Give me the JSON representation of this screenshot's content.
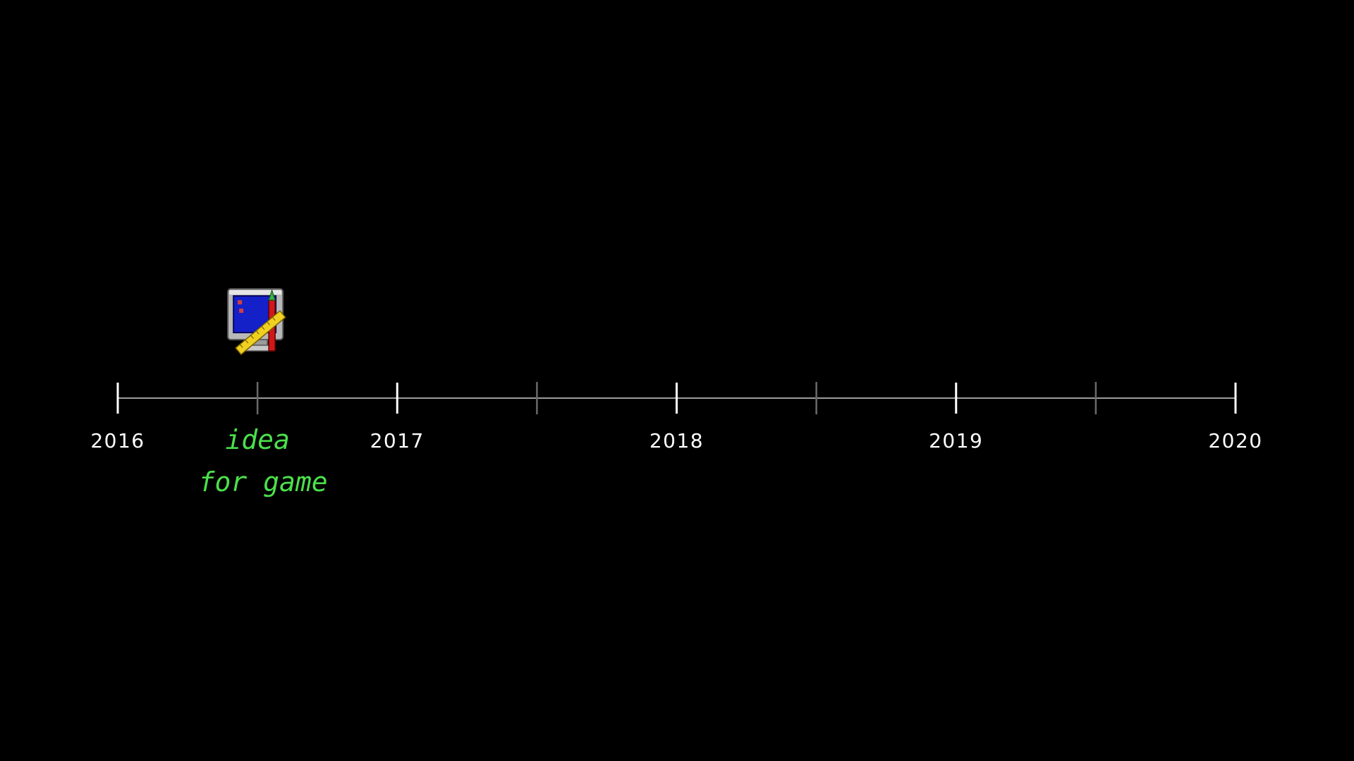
{
  "colors": {
    "background": "#000000",
    "axis": "#cfcfcf",
    "major_tick": "#ffffff",
    "minor_tick": "#6a6a6a",
    "year_text": "#ffffff",
    "annotation": "#4be04b"
  },
  "timeline": {
    "years": [
      "2016",
      "2017",
      "2018",
      "2019",
      "2020"
    ],
    "start_year": 2016,
    "end_year": 2020,
    "minor_ticks": [
      2016.5,
      2017.5,
      2018.5,
      2019.5
    ],
    "event": {
      "position": 2016.5,
      "icon": "paint-computer-icon",
      "note_lines": [
        "idea",
        "for game"
      ]
    }
  }
}
